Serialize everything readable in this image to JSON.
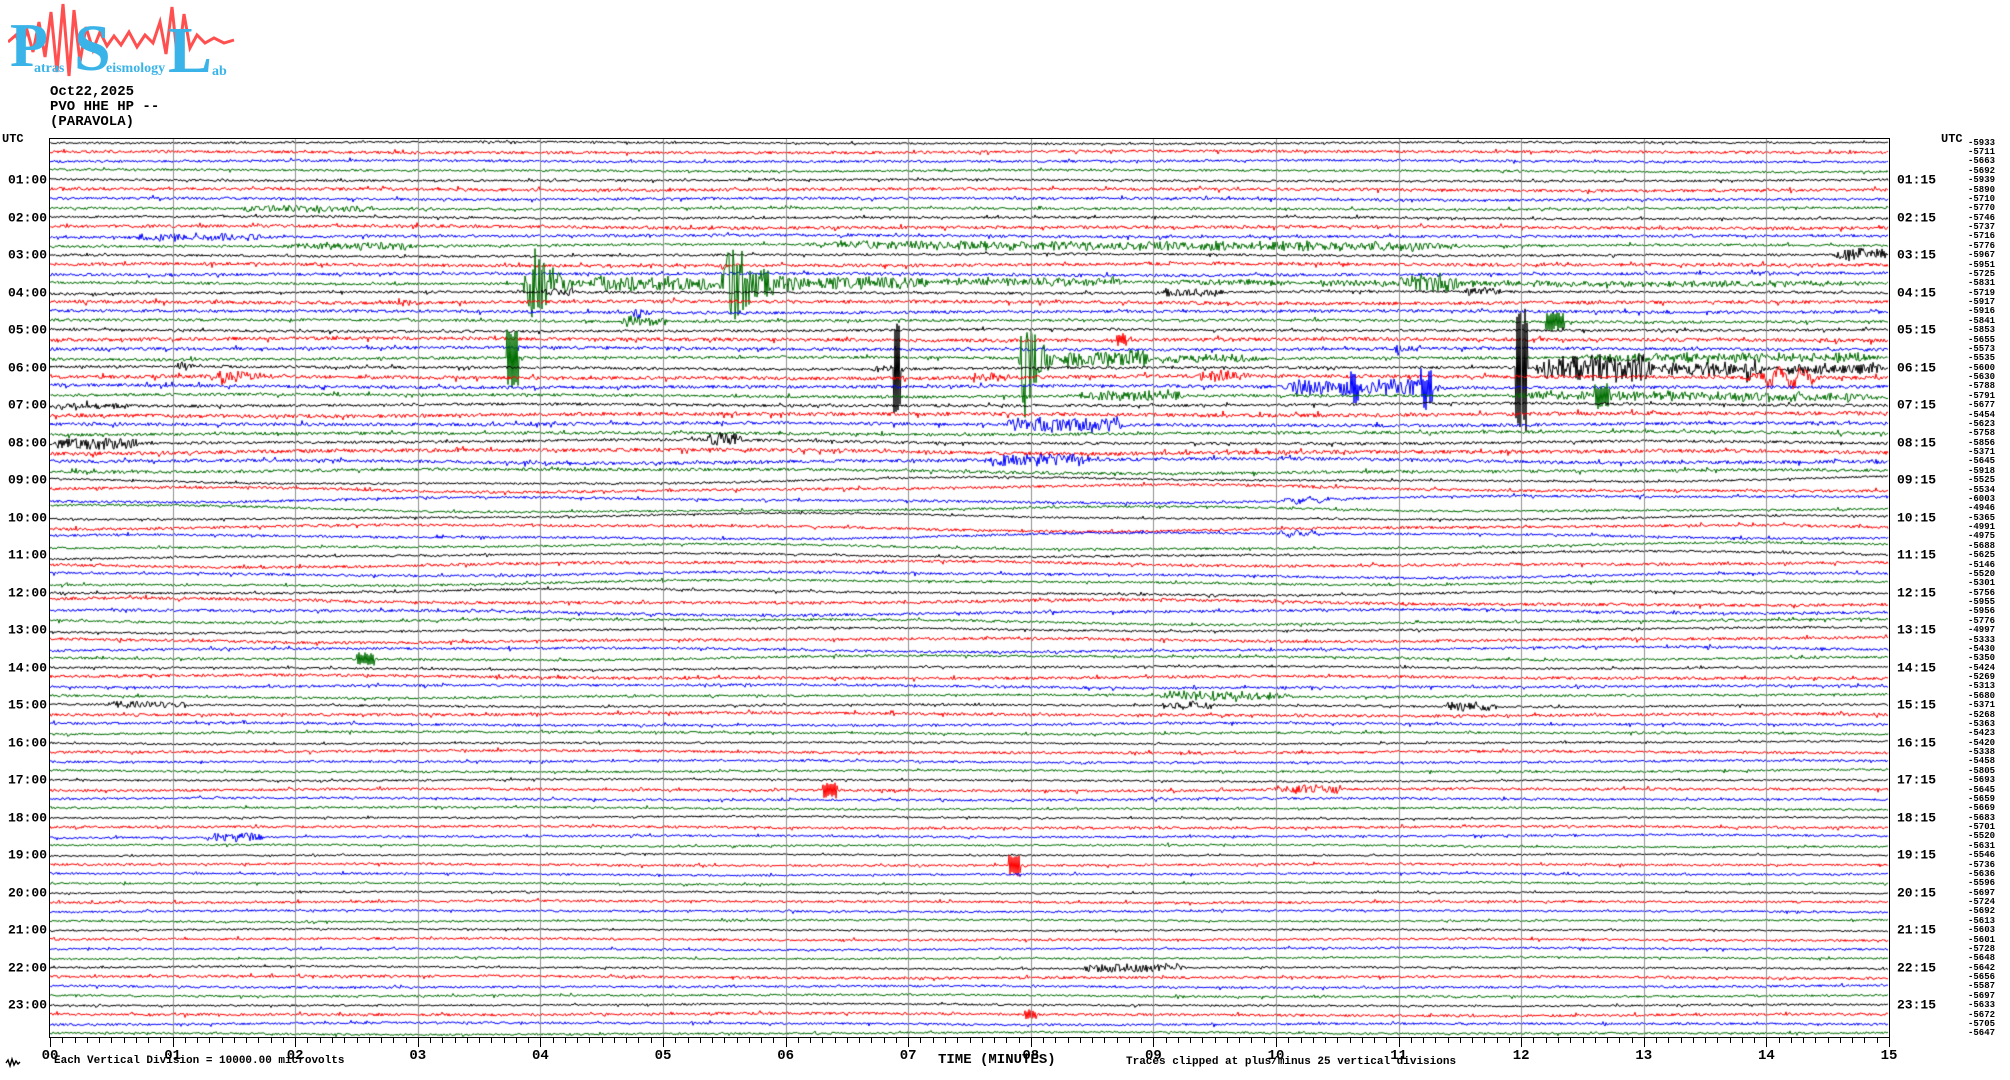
{
  "header": {
    "date": "Oct22,2025",
    "channel": "PVO HHE HP --",
    "station": "(PARAVOLA)"
  },
  "labels": {
    "utc_left": "UTC",
    "utc_right": "UTC"
  },
  "footer": {
    "scale_note": "Each Vertical Division = 10000.00 microvolts",
    "xlabel": "TIME (MINUTES)",
    "clip_note": "Traces clipped at plus/minus 25 vertical divisions"
  },
  "logo": {
    "letter_p": "P",
    "letter_s": "S",
    "letter_l": "L",
    "word_atras": "atras",
    "word_eismology": "eismology",
    "word_ab": "ab",
    "blue": "#3ab4e8",
    "red": "#ff4f4f"
  },
  "x_tick_labels": [
    "00",
    "01",
    "02",
    "03",
    "04",
    "05",
    "06",
    "07",
    "08",
    "09",
    "10",
    "11",
    "12",
    "13",
    "14",
    "15"
  ],
  "left_time_labels": [
    "01:00",
    "02:00",
    "03:00",
    "04:00",
    "05:00",
    "06:00",
    "07:00",
    "08:00",
    "09:00",
    "10:00",
    "11:00",
    "12:00",
    "13:00",
    "14:00",
    "15:00",
    "16:00",
    "17:00",
    "18:00",
    "19:00",
    "20:00",
    "21:00",
    "22:00",
    "23:00"
  ],
  "right_time_labels": [
    "01:15",
    "02:15",
    "03:15",
    "04:15",
    "05:15",
    "06:15",
    "07:15",
    "08:15",
    "09:15",
    "10:15",
    "11:15",
    "12:15",
    "13:15",
    "14:15",
    "15:15",
    "16:15",
    "17:15",
    "18:15",
    "19:15",
    "20:15",
    "21:15",
    "22:15",
    "23:15"
  ],
  "trace_offsets": [
    "-5933",
    "-5711",
    "-5663",
    "-5692",
    "-5939",
    "-5890",
    "-5710",
    "-5770",
    "-5746",
    "-5737",
    "-5716",
    "-5776",
    "-5967",
    "-5951",
    "-5725",
    "-5831",
    "-5719",
    "-5917",
    "-5916",
    "-5841",
    "-5853",
    "-5655",
    "-5573",
    "-5535",
    "-5600",
    "-5630",
    "-5788",
    "-5791",
    "-5677",
    "-5454",
    "-5623",
    "-5758",
    "-5856",
    "-5371",
    "-5645",
    "-5918",
    "-5525",
    "-5534",
    "-6003",
    "-4946",
    "-5365",
    "-4991",
    "-4975",
    "-5688",
    "-5625",
    "-5146",
    "-5520",
    "-5301",
    "-5756",
    "-5955",
    "-5956",
    "-5776",
    "-4997",
    "-5333",
    "-5430",
    "-5350",
    "-5424",
    "-5269",
    "-5313",
    "-5680",
    "-5371",
    "-5268",
    "-5363",
    "-5423",
    "-5420",
    "-5338",
    "-5458",
    "-5805",
    "-5693",
    "-5645",
    "-5659",
    "-5669",
    "-5683",
    "-5701",
    "-5520",
    "-5631",
    "-5546",
    "-5736",
    "-5636",
    "-5596",
    "-5697",
    "-5724",
    "-5692",
    "-5613",
    "-5603",
    "-5601",
    "-5728",
    "-5648",
    "-5642",
    "-5656",
    "-5587",
    "-5697",
    "-5633",
    "-5672",
    "-5705",
    "-5647"
  ],
  "chart_data": {
    "type": "line",
    "subtype": "seismogram-helicorder",
    "title": "PVO HHE HP -- (PARAVOLA) Oct22,2025",
    "xlabel": "TIME (MINUTES)",
    "x_range_minutes": [
      0,
      15
    ],
    "rows": 96,
    "row_duration_min": 15,
    "start_time_utc": "00:00",
    "grid": "vertical gray line each minute",
    "colors_cycle": [
      "#000000",
      "#ff0000",
      "#0000ff",
      "#006e00"
    ],
    "color_noise_factor": [
      0.9,
      1.25,
      1.1,
      1.0
    ],
    "hour_roughness": [
      1.1,
      1.2,
      1.25,
      1.3,
      1.35,
      1.4,
      1.45,
      1.5,
      1.5,
      1.1,
      1.1,
      1.15,
      1.25,
      1.15,
      1.15,
      1.15,
      1.05,
      1.05,
      1.0,
      0.95,
      0.95,
      0.95,
      1.05,
      1.05
    ],
    "hour_wander": [
      0.7,
      0.7,
      0.8,
      0.8,
      0.8,
      0.8,
      0.9,
      1.0,
      1.6,
      2.6,
      2.4,
      2.1,
      2.1,
      1.7,
      1.2,
      1.0,
      0.9,
      0.8,
      0.8,
      0.7,
      0.7,
      0.7,
      0.8,
      0.8
    ],
    "events_format": "[row_index, start_min, end_min, amplitude_px, kind(f=fuzz,b=burst,s=spike,w=swell)]",
    "events": [
      [
        7,
        1.5,
        2.7,
        3,
        "f"
      ],
      [
        10,
        0.65,
        1.75,
        3.5,
        "f"
      ],
      [
        11,
        1.9,
        3.0,
        3.5,
        "f"
      ],
      [
        11,
        6.0,
        11.7,
        4,
        "f"
      ],
      [
        12,
        14.55,
        15,
        6,
        "f"
      ],
      [
        15,
        3.85,
        4.35,
        45,
        "b"
      ],
      [
        15,
        4.35,
        5.45,
        7,
        "f"
      ],
      [
        15,
        5.45,
        6.2,
        45,
        "b"
      ],
      [
        15,
        6.2,
        7.2,
        6,
        "f"
      ],
      [
        15,
        7.2,
        8.8,
        4,
        "f"
      ],
      [
        15,
        8.8,
        15,
        2.5,
        "f"
      ],
      [
        15,
        11.0,
        11.5,
        8,
        "f"
      ],
      [
        16,
        4.0,
        4.3,
        4,
        "f"
      ],
      [
        16,
        9.0,
        9.6,
        4,
        "f"
      ],
      [
        16,
        11.5,
        11.85,
        4,
        "f"
      ],
      [
        17,
        2.8,
        3.1,
        3,
        "f"
      ],
      [
        18,
        4.75,
        4.95,
        8,
        "b"
      ],
      [
        19,
        4.65,
        5.05,
        5,
        "f"
      ],
      [
        19,
        12.2,
        12.35,
        9,
        "s"
      ],
      [
        21,
        8.7,
        8.78,
        5,
        "s"
      ],
      [
        22,
        10.95,
        11.15,
        9,
        "b"
      ],
      [
        23,
        3.72,
        3.82,
        30,
        "s"
      ],
      [
        23,
        7.9,
        8.2,
        70,
        "b"
      ],
      [
        23,
        8.2,
        9.0,
        8,
        "f"
      ],
      [
        23,
        9.0,
        9.9,
        4,
        "f"
      ],
      [
        23,
        12.35,
        15,
        4,
        "f"
      ],
      [
        24,
        1.0,
        1.3,
        6,
        "b"
      ],
      [
        24,
        6.7,
        7.0,
        4,
        "f"
      ],
      [
        24,
        6.88,
        6.94,
        55,
        "s"
      ],
      [
        24,
        11.95,
        12.05,
        65,
        "s"
      ],
      [
        24,
        12.1,
        13.1,
        14,
        "f"
      ],
      [
        24,
        13.1,
        13.8,
        6,
        "f"
      ],
      [
        24,
        13.8,
        14.1,
        16,
        "b"
      ],
      [
        24,
        14.1,
        15,
        5,
        "f"
      ],
      [
        25,
        1.3,
        2.0,
        9,
        "b"
      ],
      [
        25,
        7.5,
        7.85,
        4,
        "f"
      ],
      [
        25,
        9.35,
        9.75,
        5,
        "f"
      ],
      [
        25,
        13.7,
        14.6,
        11,
        "w"
      ],
      [
        26,
        10.05,
        11.35,
        8,
        "f"
      ],
      [
        26,
        10.6,
        10.68,
        14,
        "s"
      ],
      [
        26,
        11.18,
        11.28,
        16,
        "s"
      ],
      [
        27,
        8.35,
        9.3,
        4.5,
        "f"
      ],
      [
        27,
        11.8,
        15,
        4,
        "f"
      ],
      [
        27,
        12.6,
        12.72,
        12,
        "s"
      ],
      [
        28,
        0.0,
        0.7,
        3,
        "f"
      ],
      [
        30,
        7.75,
        8.8,
        7,
        "f"
      ],
      [
        32,
        0.0,
        0.75,
        6,
        "f"
      ],
      [
        32,
        5.35,
        5.65,
        6,
        "f"
      ],
      [
        34,
        7.6,
        8.5,
        5,
        "f"
      ],
      [
        38,
        9.8,
        10.7,
        4,
        "w"
      ],
      [
        42,
        9.9,
        10.5,
        4,
        "w"
      ],
      [
        55,
        2.5,
        2.65,
        6,
        "s"
      ],
      [
        59,
        9.0,
        10.15,
        4.5,
        "f"
      ],
      [
        60,
        0.45,
        1.15,
        3.5,
        "f"
      ],
      [
        60,
        9.05,
        9.5,
        4,
        "f"
      ],
      [
        60,
        11.35,
        11.8,
        4.5,
        "f"
      ],
      [
        69,
        6.3,
        6.42,
        7,
        "s"
      ],
      [
        69,
        9.9,
        10.6,
        4,
        "f"
      ],
      [
        74,
        1.25,
        1.75,
        4.5,
        "f"
      ],
      [
        77,
        7.82,
        7.92,
        10,
        "s"
      ],
      [
        88,
        8.4,
        9.3,
        4,
        "f"
      ],
      [
        93,
        7.95,
        8.05,
        5,
        "s"
      ]
    ]
  },
  "style_colors": {
    "grid_line": "#8f8f8f",
    "frame": "#000000",
    "background": "#ffffff"
  }
}
